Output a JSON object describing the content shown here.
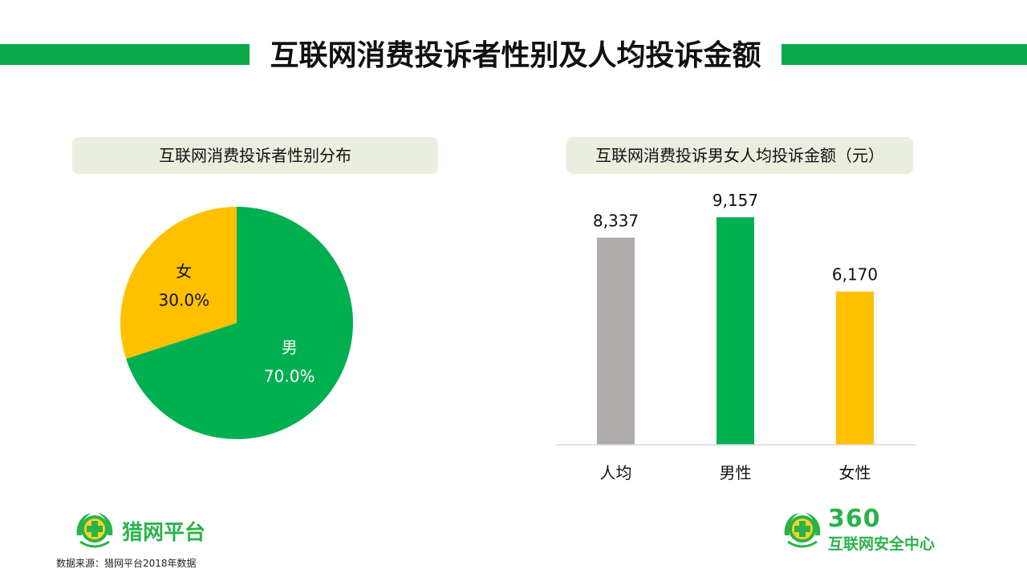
{
  "header": {
    "title": "互联网消费投诉者性别及人均投诉金额"
  },
  "colors": {
    "green": "#00b050",
    "yellow": "#ffc000",
    "gray": "#b0abab",
    "accent": "#0aa94a",
    "panel_bg": "#eaeedf"
  },
  "chart_data": [
    {
      "type": "pie",
      "title": "互联网消费投诉者性别分布",
      "slices": [
        {
          "label": "男",
          "value": 70.0,
          "display": "70.0%",
          "color": "#00b050"
        },
        {
          "label": "女",
          "value": 30.0,
          "display": "30.0%",
          "color": "#ffc000"
        }
      ],
      "start": "12 o'clock",
      "direction": "clockwise"
    },
    {
      "type": "bar",
      "title": "互联网消费投诉男女人均投诉金额（元）",
      "categories": [
        "人均",
        "男性",
        "女性"
      ],
      "values": [
        8337,
        9157,
        6170
      ],
      "value_labels": [
        "8,337",
        "9,157",
        "6,170"
      ],
      "colors": [
        "#b0abab",
        "#00b050",
        "#ffc000"
      ],
      "xlabel": "",
      "ylabel": "",
      "ylim": [
        0,
        10000
      ],
      "grid": false
    }
  ],
  "footer": {
    "source": "数据来源：猎网平台2018年数据",
    "logo_left_text": "猎网平台",
    "logo_right_num": "360",
    "logo_right_text": "互联网安全中心"
  }
}
